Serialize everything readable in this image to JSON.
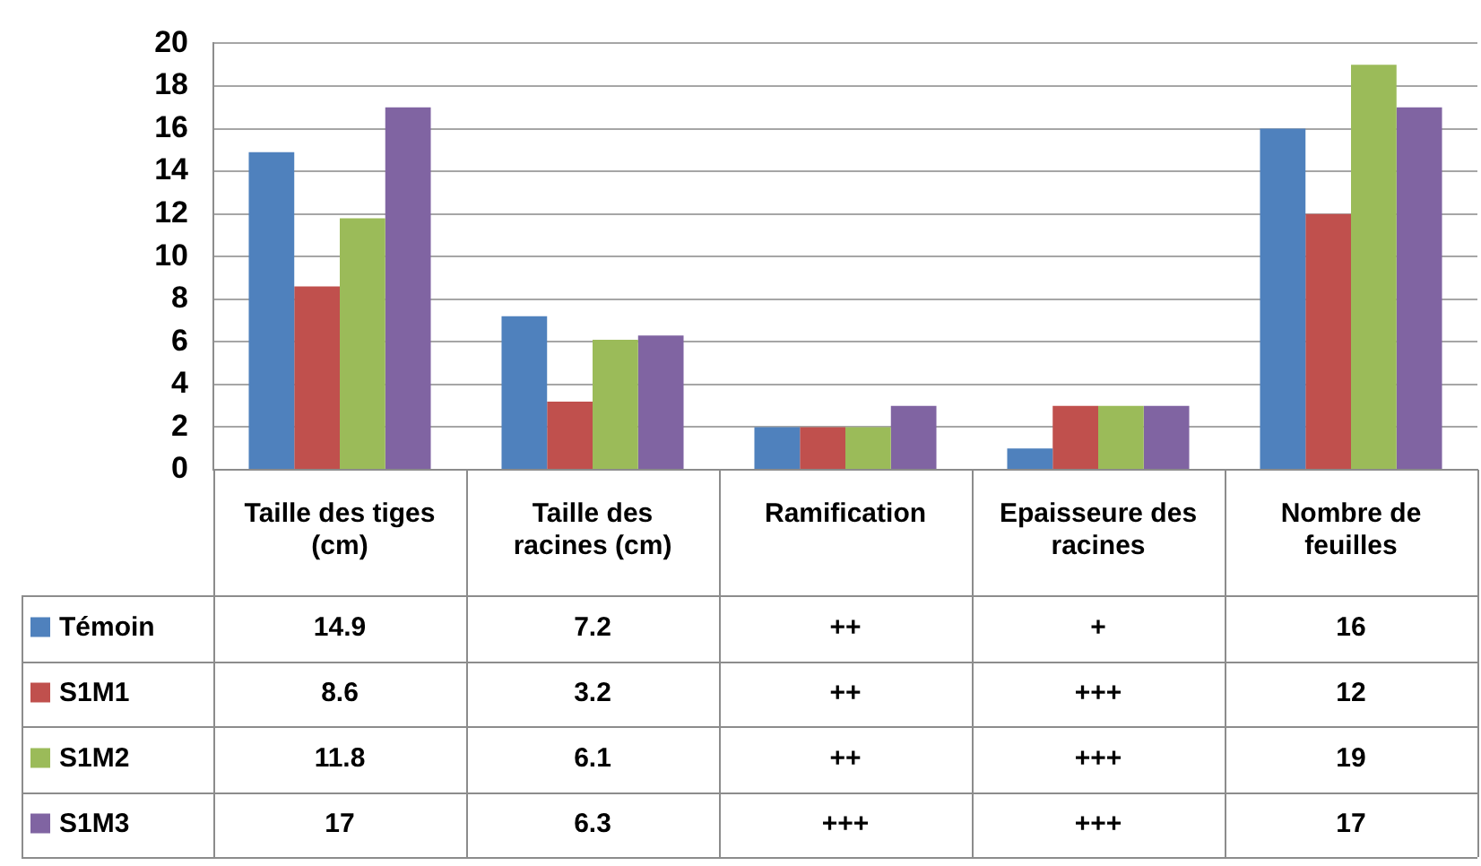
{
  "chart_data": {
    "type": "bar",
    "categories": [
      "Taille des tiges (cm)",
      "Taille des racines (cm)",
      "Ramification",
      "Epaisseure des racines",
      "Nombre de feuilles"
    ],
    "series": [
      {
        "name": "Témoin",
        "color": "#4f81bd",
        "values": [
          14.9,
          7.2,
          2,
          1,
          16
        ],
        "value_labels": [
          "14.9",
          "7.2",
          "++",
          "+",
          "16"
        ]
      },
      {
        "name": "S1M1",
        "color": "#c0504d",
        "values": [
          8.6,
          3.2,
          2,
          3,
          12
        ],
        "value_labels": [
          "8.6",
          "3.2",
          "++",
          "+++",
          "12"
        ]
      },
      {
        "name": "S1M2",
        "color": "#9bbb59",
        "values": [
          11.8,
          6.1,
          2,
          3,
          19
        ],
        "value_labels": [
          "11.8",
          "6.1",
          "++",
          "+++",
          "19"
        ]
      },
      {
        "name": "S1M3",
        "color": "#8064a2",
        "values": [
          17,
          6.3,
          3,
          3,
          17
        ],
        "value_labels": [
          "17",
          "6.3",
          "+++",
          "+++",
          "17"
        ]
      }
    ],
    "ylim": [
      0,
      20
    ],
    "yticks": [
      0,
      2,
      4,
      6,
      8,
      10,
      12,
      14,
      16,
      18,
      20
    ],
    "grid": "y",
    "legend": "bottom"
  }
}
